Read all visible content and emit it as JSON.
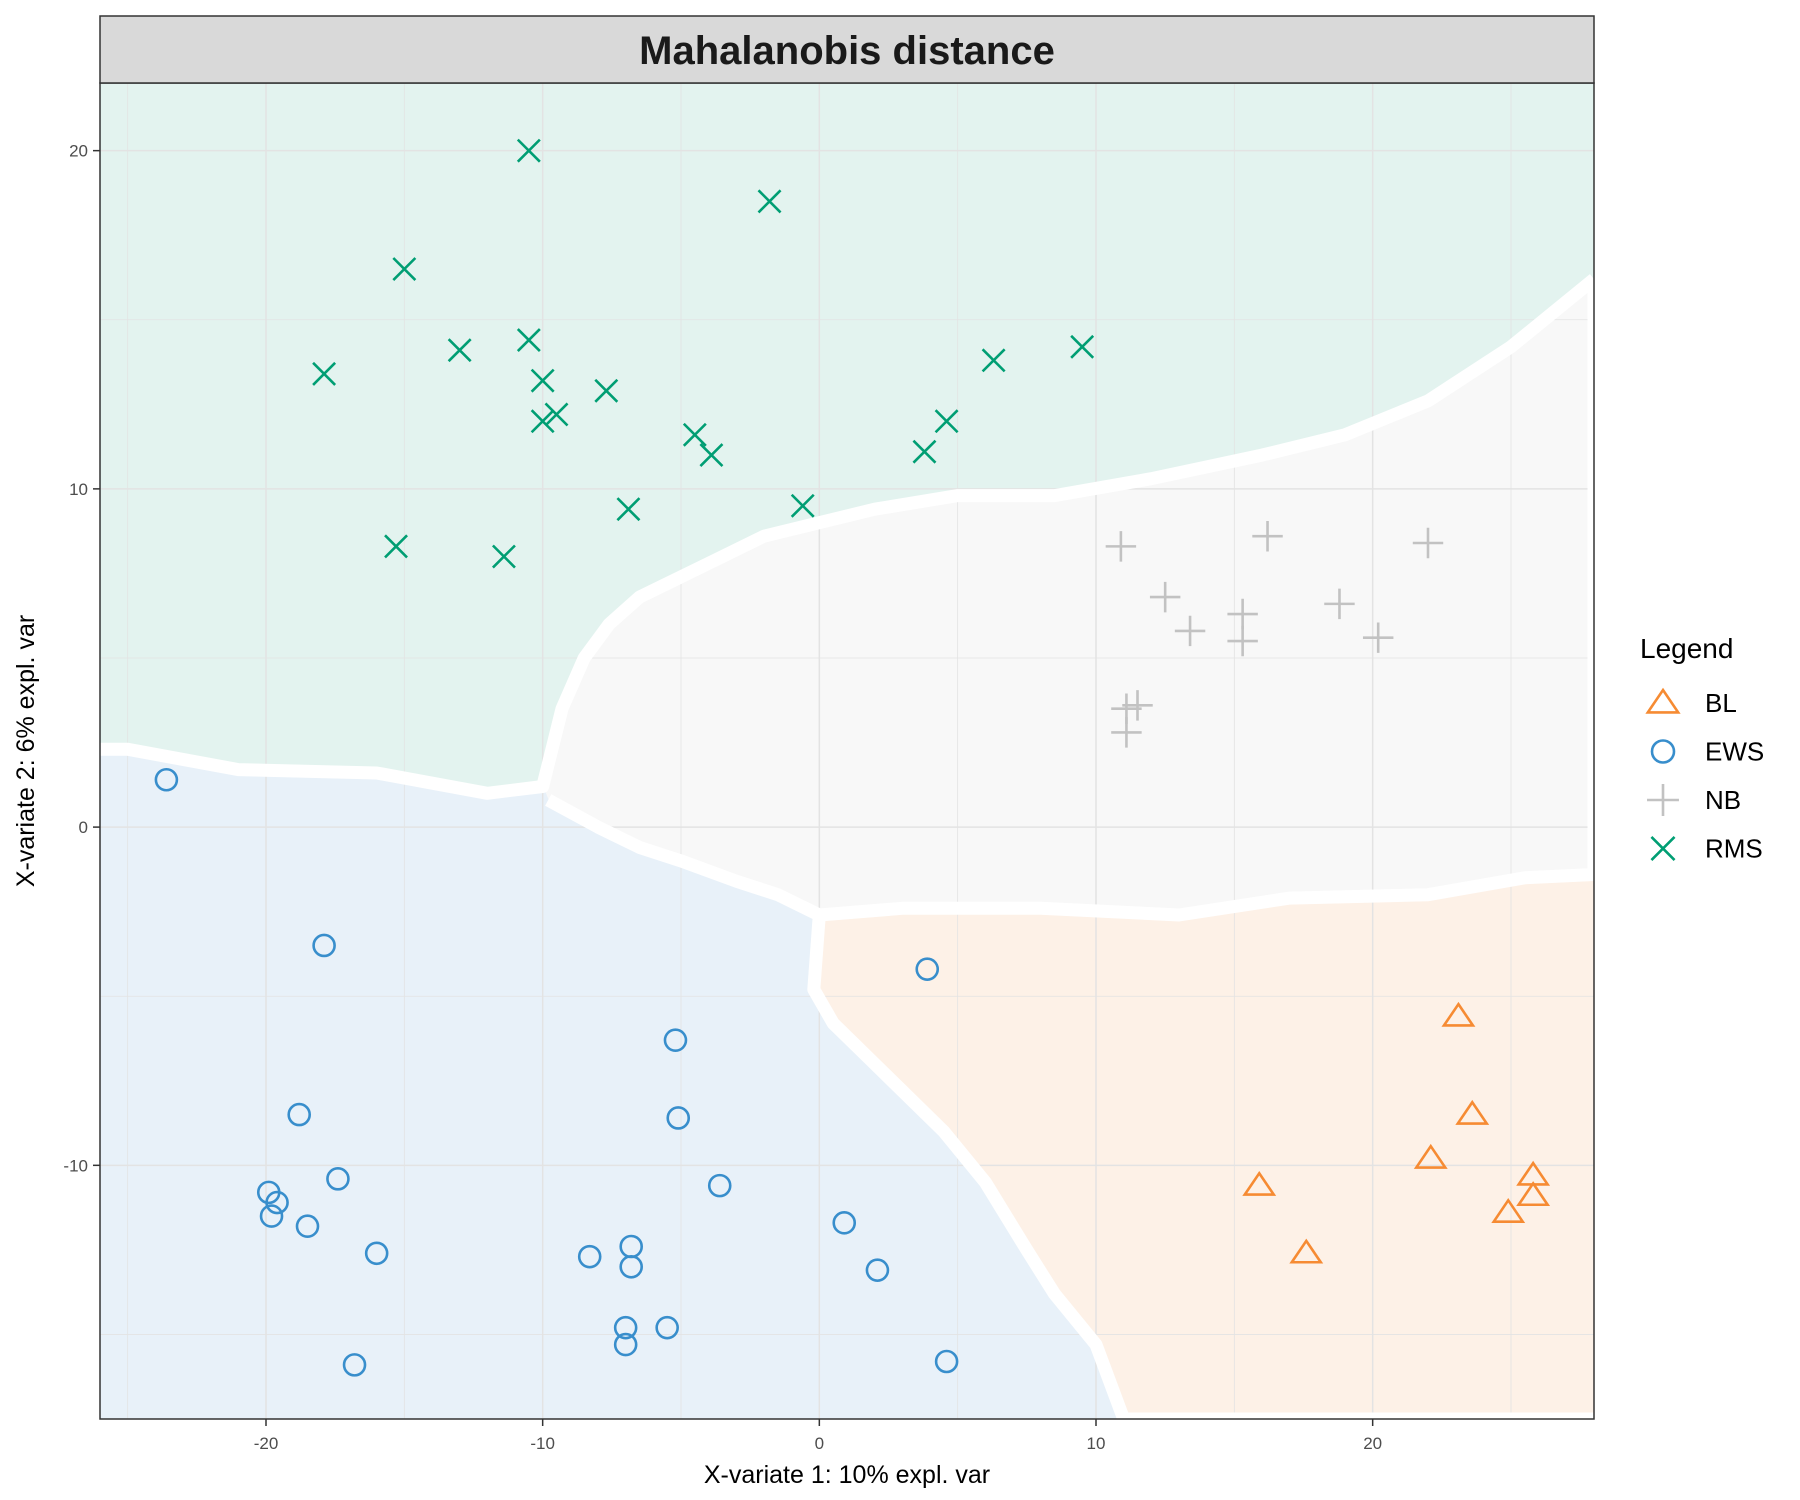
{
  "chart_data": {
    "type": "scatter",
    "title": "Mahalanobis distance",
    "xlabel": "X-variate 1: 10% expl. var",
    "ylabel": "X-variate 2: 6% expl. var",
    "xlim": [
      -26,
      28
    ],
    "ylim": [
      -17.5,
      22
    ],
    "x_ticks": [
      -20,
      -10,
      0,
      10,
      20
    ],
    "y_ticks": [
      -10,
      0,
      10,
      20
    ],
    "x_tick_labels": [
      "-20",
      "-10",
      "0",
      "10",
      "20"
    ],
    "y_tick_labels": [
      "-10",
      "0",
      "10",
      "20"
    ],
    "grid": true,
    "legend": {
      "title": "Legend",
      "position": "right"
    },
    "series": [
      {
        "name": "BL",
        "marker": "triangle",
        "color": "#F68B33",
        "region_color": "#FDF1E7",
        "points": [
          [
            23.1,
            -5.6
          ],
          [
            23.6,
            -8.5
          ],
          [
            22.1,
            -9.8
          ],
          [
            25.8,
            -10.3
          ],
          [
            25.8,
            -10.9
          ],
          [
            24.9,
            -11.4
          ],
          [
            15.9,
            -10.6
          ],
          [
            17.6,
            -12.6
          ]
        ]
      },
      {
        "name": "EWS",
        "marker": "circle",
        "color": "#388ECC",
        "region_color": "#E8F1F9",
        "points": [
          [
            -23.6,
            1.4
          ],
          [
            -17.9,
            -3.5
          ],
          [
            3.9,
            -4.2
          ],
          [
            -5.2,
            -6.3
          ],
          [
            -5.1,
            -8.6
          ],
          [
            -18.8,
            -8.5
          ],
          [
            -17.4,
            -10.4
          ],
          [
            -19.9,
            -10.8
          ],
          [
            -19.6,
            -11.1
          ],
          [
            -19.8,
            -11.5
          ],
          [
            -18.5,
            -11.8
          ],
          [
            -3.6,
            -10.6
          ],
          [
            0.9,
            -11.7
          ],
          [
            -16.0,
            -12.6
          ],
          [
            -8.3,
            -12.7
          ],
          [
            -6.8,
            -12.4
          ],
          [
            -6.8,
            -13.0
          ],
          [
            2.1,
            -13.1
          ],
          [
            -7.0,
            -14.8
          ],
          [
            -5.5,
            -14.8
          ],
          [
            -7.0,
            -15.3
          ],
          [
            4.6,
            -15.8
          ],
          [
            -16.8,
            -15.9
          ]
        ]
      },
      {
        "name": "NB",
        "marker": "plus",
        "color": "#C2C2C2",
        "region_color": "#F8F8F8",
        "points": [
          [
            10.9,
            8.3
          ],
          [
            16.2,
            8.6
          ],
          [
            22.0,
            8.4
          ],
          [
            12.5,
            6.8
          ],
          [
            13.4,
            5.8
          ],
          [
            15.3,
            6.3
          ],
          [
            15.3,
            5.5
          ],
          [
            18.8,
            6.6
          ],
          [
            20.2,
            5.6
          ],
          [
            11.1,
            3.5
          ],
          [
            11.5,
            3.6
          ],
          [
            11.1,
            2.8
          ]
        ]
      },
      {
        "name": "RMS",
        "marker": "cross",
        "color": "#009E73",
        "region_color": "#E3F3EF",
        "points": [
          [
            -10.5,
            20.0
          ],
          [
            -1.8,
            18.5
          ],
          [
            -15.0,
            16.5
          ],
          [
            -13.0,
            14.1
          ],
          [
            -10.5,
            14.4
          ],
          [
            -17.9,
            13.4
          ],
          [
            -10.0,
            13.2
          ],
          [
            -7.7,
            12.9
          ],
          [
            -9.5,
            12.2
          ],
          [
            -10.0,
            12.0
          ],
          [
            -4.5,
            11.6
          ],
          [
            -3.9,
            11.0
          ],
          [
            9.5,
            14.2
          ],
          [
            6.3,
            13.8
          ],
          [
            4.6,
            12.0
          ],
          [
            3.8,
            11.1
          ],
          [
            -6.9,
            9.4
          ],
          [
            -0.6,
            9.5
          ],
          [
            -15.3,
            8.3
          ],
          [
            -11.4,
            8.0
          ]
        ]
      }
    ],
    "regions": {
      "RMS": [
        [
          -26,
          2.3
        ],
        [
          -25,
          2.3
        ],
        [
          -21,
          1.7
        ],
        [
          -16,
          1.6
        ],
        [
          -12,
          1.0
        ],
        [
          -10,
          1.2
        ],
        [
          -9.3,
          3.5
        ],
        [
          -8.5,
          5.0
        ],
        [
          -7.6,
          6.0
        ],
        [
          -6.5,
          6.8
        ],
        [
          -4.0,
          7.8
        ],
        [
          -2.0,
          8.6
        ],
        [
          0,
          9.0
        ],
        [
          2.0,
          9.4
        ],
        [
          5.0,
          9.8
        ],
        [
          8.5,
          9.8
        ],
        [
          12.0,
          10.3
        ],
        [
          16.0,
          11.0
        ],
        [
          19.0,
          11.6
        ],
        [
          22.0,
          12.6
        ],
        [
          25.0,
          14.2
        ],
        [
          28,
          16.2
        ],
        [
          28,
          22
        ],
        [
          -26,
          22
        ]
      ],
      "NB": [
        [
          -9.8,
          0.8
        ],
        [
          -8.0,
          0
        ],
        [
          -6.5,
          -0.6
        ],
        [
          -5.0,
          -1.0
        ],
        [
          -3.0,
          -1.6
        ],
        [
          -1.5,
          -2.0
        ],
        [
          0,
          -2.6
        ],
        [
          3.0,
          -2.4
        ],
        [
          8.0,
          -2.4
        ],
        [
          13.0,
          -2.6
        ],
        [
          17.0,
          -2.1
        ],
        [
          22.0,
          -2.0
        ],
        [
          25.5,
          -1.5
        ],
        [
          28,
          -1.4
        ],
        [
          28,
          16.2
        ],
        [
          25.0,
          14.2
        ],
        [
          22.0,
          12.6
        ],
        [
          19.0,
          11.6
        ],
        [
          16.0,
          11.0
        ],
        [
          12.0,
          10.3
        ],
        [
          8.5,
          9.8
        ],
        [
          5.0,
          9.8
        ],
        [
          2.0,
          9.4
        ],
        [
          0,
          9.0
        ],
        [
          -2.0,
          8.6
        ],
        [
          -4.0,
          7.8
        ],
        [
          -6.5,
          6.8
        ],
        [
          -7.6,
          6.0
        ],
        [
          -8.5,
          5.0
        ],
        [
          -9.3,
          3.5
        ],
        [
          -10,
          1.2
        ]
      ],
      "BL": [
        [
          0,
          -2.6
        ],
        [
          -0.2,
          -4.8
        ],
        [
          0.5,
          -5.8
        ],
        [
          2.0,
          -7.0
        ],
        [
          4.5,
          -9.0
        ],
        [
          6.0,
          -10.5
        ],
        [
          7.5,
          -12.5
        ],
        [
          8.5,
          -13.8
        ],
        [
          10.0,
          -15.3
        ],
        [
          11.0,
          -17.5
        ],
        [
          28,
          -17.5
        ],
        [
          28,
          -1.4
        ],
        [
          25.5,
          -1.5
        ],
        [
          22.0,
          -2.0
        ],
        [
          17.0,
          -2.1
        ],
        [
          13.0,
          -2.6
        ],
        [
          8.0,
          -2.4
        ],
        [
          3.0,
          -2.4
        ]
      ],
      "EWS": [
        [
          -26,
          -17.5
        ],
        [
          11.0,
          -17.5
        ],
        [
          10.0,
          -15.3
        ],
        [
          8.5,
          -13.8
        ],
        [
          7.5,
          -12.5
        ],
        [
          6.0,
          -10.5
        ],
        [
          4.5,
          -9.0
        ],
        [
          2.0,
          -7.0
        ],
        [
          0.5,
          -5.8
        ],
        [
          -0.2,
          -4.8
        ],
        [
          0,
          -2.6
        ],
        [
          -1.5,
          -2.0
        ],
        [
          -3.0,
          -1.6
        ],
        [
          -5.0,
          -1.0
        ],
        [
          -6.5,
          -0.6
        ],
        [
          -8.0,
          0
        ],
        [
          -9.8,
          0.8
        ],
        [
          -10,
          1.2
        ],
        [
          -12,
          1.0
        ],
        [
          -16,
          1.6
        ],
        [
          -21,
          1.7
        ],
        [
          -25,
          2.3
        ],
        [
          -26,
          2.3
        ]
      ]
    },
    "colors": {
      "panel_border": "#333333",
      "strip_fill": "#D9D9D9",
      "grid": "#E3E3E3",
      "boundary": "#FFFFFF"
    }
  }
}
